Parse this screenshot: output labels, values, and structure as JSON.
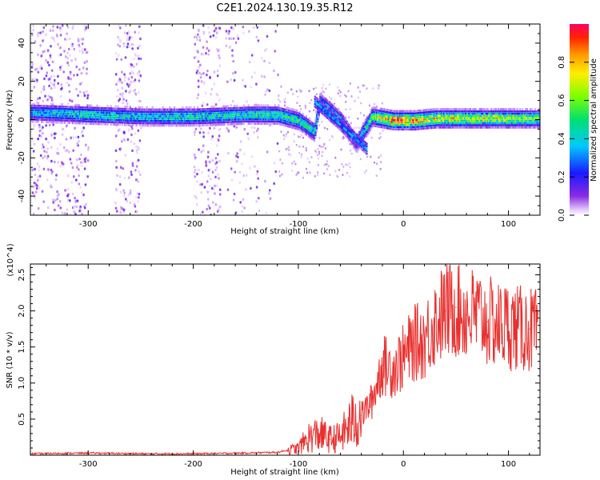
{
  "title": "C2E1.2024.130.19.35.R12",
  "colors": {
    "signal": "#e8302e",
    "axis": "#000000",
    "background": "#ffffff"
  },
  "chart_data": [
    {
      "type": "heatmap",
      "title": "C2E1.2024.130.19.35.R12",
      "xlabel": "Height of straight line (km)",
      "ylabel": "Frequency (Hz)",
      "xlim": [
        -355,
        130
      ],
      "ylim": [
        -50,
        50
      ],
      "xticks": [
        -300,
        -200,
        -100,
        0,
        100
      ],
      "yticks": [
        -40,
        -20,
        0,
        20,
        40
      ],
      "colorbar": {
        "label": "Normalized spectral amplitude",
        "range": [
          0.0,
          1.0
        ],
        "ticks": [
          0.0,
          0.2,
          0.4,
          0.6,
          0.8
        ],
        "colormap": "rainbow (violet to red)"
      },
      "dominant_ridge": [
        {
          "x": -350,
          "freq": 4,
          "amp": 0.35
        },
        {
          "x": -300,
          "freq": 3,
          "amp": 0.45
        },
        {
          "x": -250,
          "freq": 2,
          "amp": 0.4
        },
        {
          "x": -200,
          "freq": 2,
          "amp": 0.45
        },
        {
          "x": -150,
          "freq": 3,
          "amp": 0.45
        },
        {
          "x": -120,
          "freq": 3,
          "amp": 0.5
        },
        {
          "x": -100,
          "freq": 0,
          "amp": 0.5
        },
        {
          "x": -85,
          "freq": -6,
          "amp": 0.45
        },
        {
          "x": -80,
          "freq": 10,
          "amp": 0.35
        },
        {
          "x": -60,
          "freq": 0,
          "amp": 0.4
        },
        {
          "x": -45,
          "freq": -12,
          "amp": 0.3
        },
        {
          "x": -30,
          "freq": 2,
          "amp": 0.55
        },
        {
          "x": -10,
          "freq": 0,
          "amp": 0.9
        },
        {
          "x": 10,
          "freq": 0,
          "amp": 0.85
        },
        {
          "x": 30,
          "freq": 1,
          "amp": 0.7
        },
        {
          "x": 60,
          "freq": 1,
          "amp": 0.7
        },
        {
          "x": 100,
          "freq": 1,
          "amp": 0.65
        },
        {
          "x": 125,
          "freq": 1,
          "amp": 0.55
        }
      ]
    },
    {
      "type": "line",
      "xlabel": "Height of straight line (km)",
      "ylabel": "SNR (10 * v/v)",
      "y_multiplier": "(x10^4)",
      "xlim": [
        -355,
        130
      ],
      "ylim": [
        0,
        2.65
      ],
      "xticks": [
        -300,
        -200,
        -100,
        0,
        100
      ],
      "yticks": [
        0.5,
        1.0,
        1.5,
        2.0,
        2.5
      ],
      "series": [
        {
          "x": [
            -355,
            -300,
            -250,
            -200,
            -150,
            -120,
            -100,
            -90,
            -80,
            -70,
            -60,
            -50,
            -40,
            -30,
            -25,
            -20,
            -10,
            0,
            10,
            20,
            30,
            40,
            50,
            60,
            70,
            80,
            90,
            100,
            110,
            120,
            128
          ],
          "values": [
            0.02,
            0.03,
            0.02,
            0.02,
            0.03,
            0.04,
            0.1,
            0.25,
            0.3,
            0.22,
            0.25,
            0.45,
            0.55,
            0.75,
            1.0,
            1.25,
            1.2,
            1.35,
            1.55,
            1.6,
            1.85,
            2.0,
            2.05,
            1.95,
            1.95,
            1.85,
            1.8,
            1.8,
            1.75,
            1.75,
            1.7
          ]
        }
      ]
    }
  ]
}
